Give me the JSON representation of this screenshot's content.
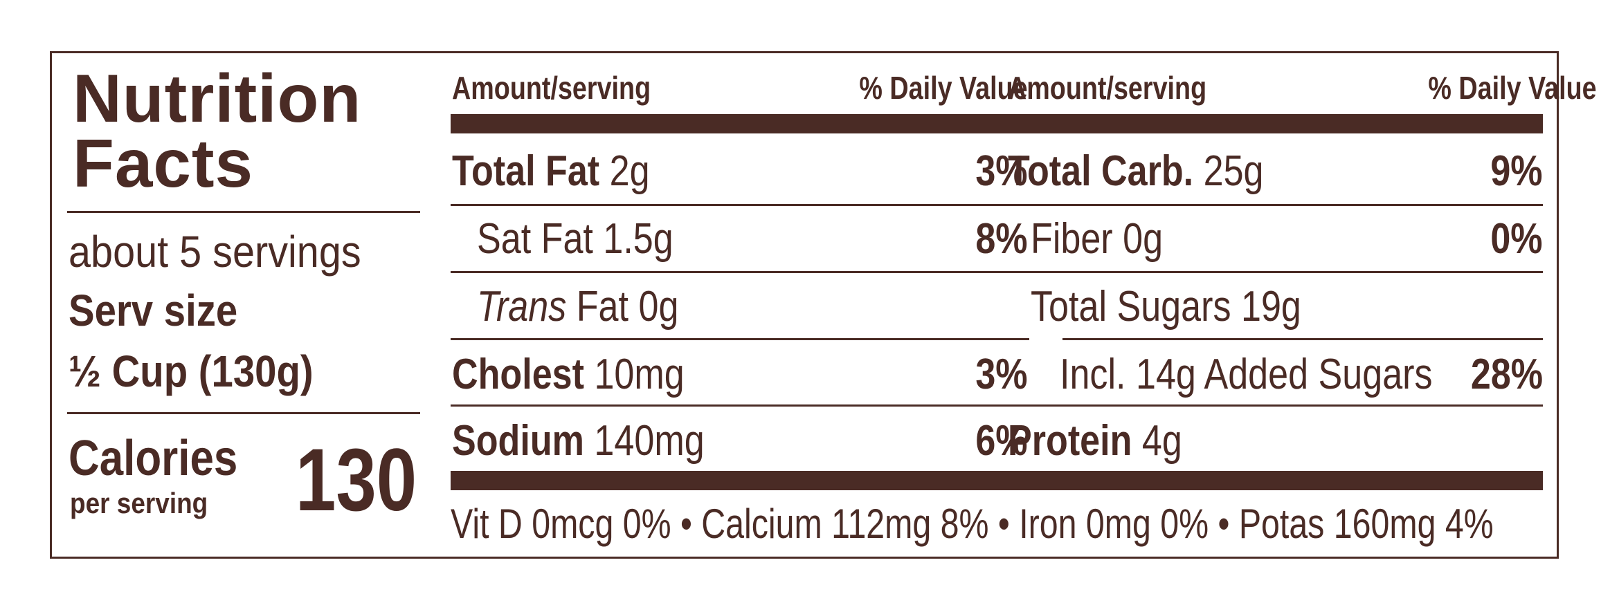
{
  "label": {
    "title_line1": "Nutrition",
    "title_line2": "Facts",
    "servings": "about 5 servings",
    "serv_size_label": "Serv size",
    "serv_size_value": "½ Cup (130g)",
    "calories_label": "Calories",
    "per_serving": "per serving",
    "calories_value": "130"
  },
  "left_table": {
    "header_amount": "Amount/serving",
    "header_dv": "% Daily Value",
    "rows": [
      {
        "name": "Total Fat",
        "amount": "2g",
        "dv": "3%"
      },
      {
        "name": "Sat Fat",
        "amount": "1.5g",
        "dv": "8%"
      },
      {
        "name_italic": "Trans",
        "name": "Fat",
        "amount": "0g",
        "dv": ""
      },
      {
        "name": "Cholest",
        "amount": "10mg",
        "dv": "3%"
      },
      {
        "name": "Sodium",
        "amount": "140mg",
        "dv": "6%"
      }
    ]
  },
  "right_table": {
    "header_amount": "Amount/serving",
    "header_dv": "% Daily Value",
    "rows": [
      {
        "name": "Total Carb.",
        "amount": "25g",
        "dv": "9%"
      },
      {
        "name": "Fiber",
        "amount": "0g",
        "dv": "0%"
      },
      {
        "name": "Total Sugars",
        "amount": "19g",
        "dv": ""
      },
      {
        "name": "Incl. 14g Added Sugars",
        "amount": "",
        "dv": "28%"
      },
      {
        "name": "Protein",
        "amount": "4g",
        "dv": ""
      }
    ]
  },
  "footer": "Vit D 0mcg 0% • Calcium 112mg 8% • Iron 0mg 0% • Potas 160mg 4%"
}
